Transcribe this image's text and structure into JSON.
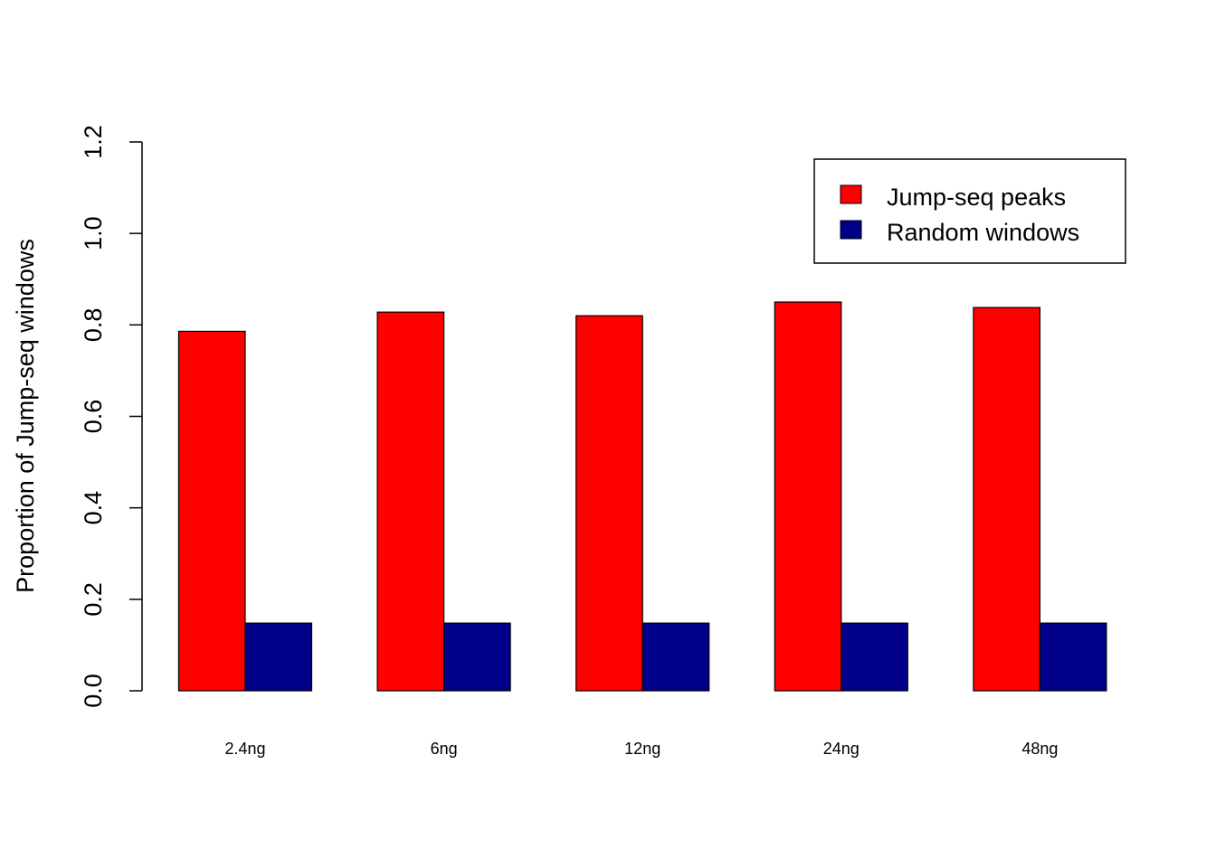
{
  "chart_data": {
    "type": "bar",
    "title": "",
    "xlabel": "",
    "ylabel": "Proportion of Jump-seq windows",
    "categories": [
      "2.4ng",
      "6ng",
      "12ng",
      "24ng",
      "48ng"
    ],
    "series": [
      {
        "name": "Jump-seq peaks",
        "color": "#ff0000",
        "values": [
          0.786,
          0.828,
          0.82,
          0.85,
          0.838
        ]
      },
      {
        "name": "Random windows",
        "color": "#00008b",
        "values": [
          0.148,
          0.148,
          0.148,
          0.148,
          0.148
        ]
      }
    ],
    "ylim": [
      0,
      1.2
    ],
    "yticks": [
      "0.0",
      "0.2",
      "0.4",
      "0.6",
      "0.8",
      "1.0",
      "1.2"
    ],
    "grid": false,
    "legend_position": "top-right"
  }
}
